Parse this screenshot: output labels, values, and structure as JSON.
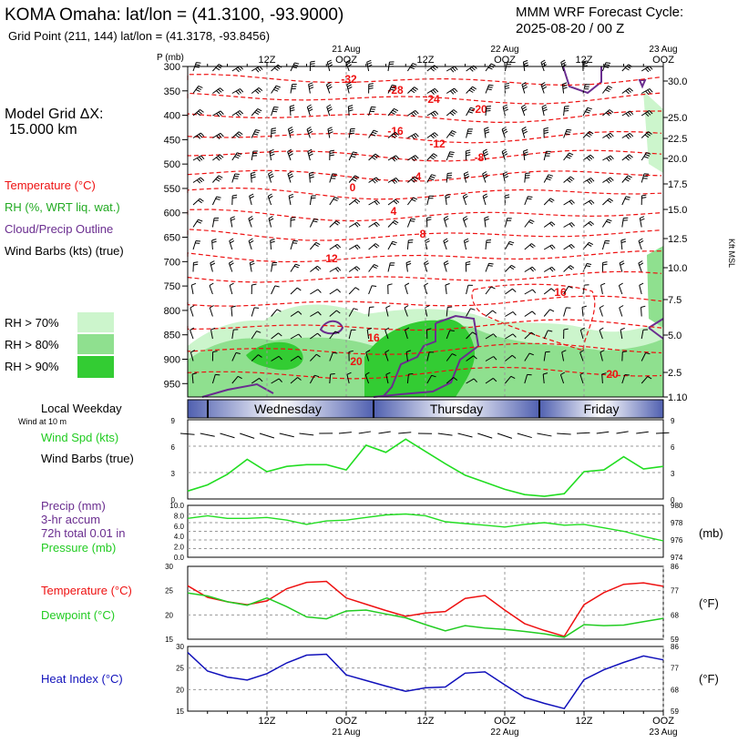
{
  "header": {
    "title": "KOMA Omaha:  lat/lon = (41.3100, -93.9000)",
    "grid_point": "Grid Point (211, 144) lat/lon = (41.3178, -93.8456)",
    "forecast_line1": "MMM WRF Forecast Cycle:",
    "forecast_line2": "2025-08-20 / 00  Z"
  },
  "sidebar": {
    "model_grid_label": "Model Grid ΔX:",
    "model_grid_value": "15.000 km",
    "legend_temperature": "Temperature (°C)",
    "legend_rh": "RH (%, WRT liq. wat.)",
    "legend_cloud": "Cloud/Precip Outline",
    "legend_wind": "Wind Barbs (kts) (true)",
    "rh_levels": [
      "RH > 70%",
      "RH > 80%",
      "RH > 90%"
    ],
    "local_weekday": "Local Weekday",
    "wind_at_10m": "Wind at 10 m",
    "wind_spd": "Wind Spd (kts)",
    "wind_barbs": "Wind Barbs (true)",
    "precip_line1": "Precip (mm)",
    "precip_line2": "3-hr accum",
    "precip_line3": "72h total 0.01 in",
    "pressure_label": "Pressure (mb)",
    "temp_label": "Temperature (°C)",
    "dewpoint_label": "Dewpoint (°C)",
    "heat_index_label": "Heat Index (°C)"
  },
  "colors": {
    "temperature": "#ee1111",
    "dewpoint": "#22cc22",
    "heat_index": "#1111bb",
    "cloud_outline": "#6a2d8f",
    "rh70": "#ccf5cc",
    "rh80": "#8fe08f",
    "rh90": "#33cc33",
    "wind": "#22dd22"
  },
  "chart_data": [
    {
      "type": "heatmap",
      "name_units": "P (mb)",
      "right_units": "Kft MSL",
      "x_time_labels": [
        {
          "label": "12Z",
          "date": ""
        },
        {
          "label": "OOZ",
          "date": "21 Aug"
        },
        {
          "label": "12Z",
          "date": ""
        },
        {
          "label": "OOZ",
          "date": "22 Aug"
        },
        {
          "label": "12Z",
          "date": ""
        },
        {
          "label": "OOZ",
          "date": "23 Aug"
        }
      ],
      "pressure_ticks": [
        300,
        350,
        400,
        450,
        500,
        550,
        600,
        650,
        700,
        750,
        800,
        850,
        900,
        950
      ],
      "height_ticks": [
        "30.0",
        "25.0",
        "22.5",
        "20.0",
        "17.5",
        "15.0",
        "12.5",
        "10.0",
        "7.5",
        "5.0",
        "2.5",
        "1.10"
      ],
      "contour_labels": [
        "-32",
        "-28",
        "-24",
        "-20",
        "-16",
        "-12",
        "-8",
        "-4",
        "0",
        "4",
        "8",
        "12",
        "16",
        "16",
        "20",
        "20"
      ],
      "weekdays": [
        "Wednesday",
        "Thursday",
        "Friday"
      ]
    },
    {
      "type": "line",
      "title": "Wind Spd (kts)",
      "ylim": [
        0,
        9
      ],
      "yticks": [
        0,
        3,
        6,
        9
      ],
      "x_hours": [
        0,
        3,
        6,
        9,
        12,
        15,
        18,
        21,
        24,
        27,
        30,
        33,
        36,
        39,
        42,
        45,
        48,
        51,
        54,
        57,
        60,
        63,
        66,
        69,
        72
      ],
      "values": [
        0.9,
        1.6,
        2.8,
        4.5,
        3.1,
        3.7,
        3.9,
        3.9,
        3.3,
        6.1,
        5.3,
        6.8,
        5.4,
        4.0,
        2.7,
        1.9,
        1.1,
        0.5,
        0.3,
        0.6,
        3.1,
        3.3,
        4.8,
        3.4,
        3.7
      ]
    },
    {
      "type": "line",
      "title": "Pressure (mb)",
      "left_ticks": [
        "0.0",
        "2.0",
        "4.0",
        "6.0",
        "8.0",
        "10.0"
      ],
      "right_ticks": [
        974,
        976,
        978,
        980
      ],
      "ylim": [
        974,
        980
      ],
      "x_hours": [
        0,
        3,
        6,
        9,
        12,
        15,
        18,
        21,
        24,
        27,
        30,
        33,
        36,
        39,
        42,
        45,
        48,
        51,
        54,
        57,
        60,
        63,
        66,
        69,
        72
      ],
      "values": [
        978.5,
        978.8,
        978.5,
        978.5,
        978.6,
        978.3,
        977.8,
        978.2,
        978.3,
        978.6,
        978.9,
        979.0,
        978.8,
        978.1,
        977.9,
        977.7,
        977.5,
        977.8,
        978.0,
        977.7,
        977.8,
        977.4,
        977.0,
        976.4,
        975.9
      ]
    },
    {
      "type": "line",
      "title": "Temperature / Dewpoint",
      "ylim": [
        15,
        30
      ],
      "left_ticks": [
        15,
        20,
        25,
        30
      ],
      "right_ticks": [
        59,
        68,
        77,
        86
      ],
      "x_hours": [
        0,
        3,
        6,
        9,
        12,
        15,
        18,
        21,
        24,
        27,
        30,
        33,
        36,
        39,
        42,
        45,
        48,
        51,
        54,
        57,
        60,
        63,
        66,
        69,
        72
      ],
      "series": [
        {
          "name": "Temperature (°C)",
          "values": [
            26.0,
            23.6,
            22.7,
            22.1,
            22.9,
            25.4,
            26.7,
            26.9,
            23.5,
            22.2,
            20.9,
            19.7,
            20.4,
            20.7,
            23.4,
            24.0,
            21.0,
            18.2,
            16.8,
            15.6,
            22.1,
            24.6,
            26.3,
            26.6,
            25.9
          ]
        },
        {
          "name": "Dewpoint (°C)",
          "values": [
            24.5,
            23.9,
            22.7,
            22.0,
            23.5,
            21.7,
            19.6,
            19.2,
            20.8,
            21.0,
            20.2,
            19.4,
            18.0,
            16.7,
            17.8,
            17.3,
            17.0,
            16.6,
            16.1,
            15.4,
            18.0,
            17.8,
            17.9,
            18.6,
            19.3
          ]
        }
      ]
    },
    {
      "type": "line",
      "title": "Heat Index (°C)",
      "ylim": [
        15,
        30
      ],
      "left_ticks": [
        15,
        20,
        25,
        30
      ],
      "right_ticks": [
        59,
        68,
        77,
        86
      ],
      "x_hours": [
        0,
        3,
        6,
        9,
        12,
        15,
        18,
        21,
        24,
        27,
        30,
        33,
        36,
        39,
        42,
        45,
        48,
        51,
        54,
        57,
        60,
        63,
        66,
        69,
        72
      ],
      "values": [
        28.6,
        24.3,
        22.9,
        22.2,
        23.7,
        26.2,
        28.0,
        28.2,
        23.4,
        22.1,
        20.8,
        19.6,
        20.4,
        20.6,
        23.8,
        24.1,
        21.1,
        18.2,
        16.8,
        15.6,
        22.3,
        24.6,
        26.3,
        27.8,
        26.9
      ]
    }
  ],
  "bottom_axis": [
    {
      "label": "12Z",
      "date": ""
    },
    {
      "label": "OOZ",
      "date": "21 Aug"
    },
    {
      "label": "12Z",
      "date": ""
    },
    {
      "label": "OOZ",
      "date": "22 Aug"
    },
    {
      "label": "12Z",
      "date": ""
    },
    {
      "label": "OOZ",
      "date": "23 Aug"
    }
  ]
}
